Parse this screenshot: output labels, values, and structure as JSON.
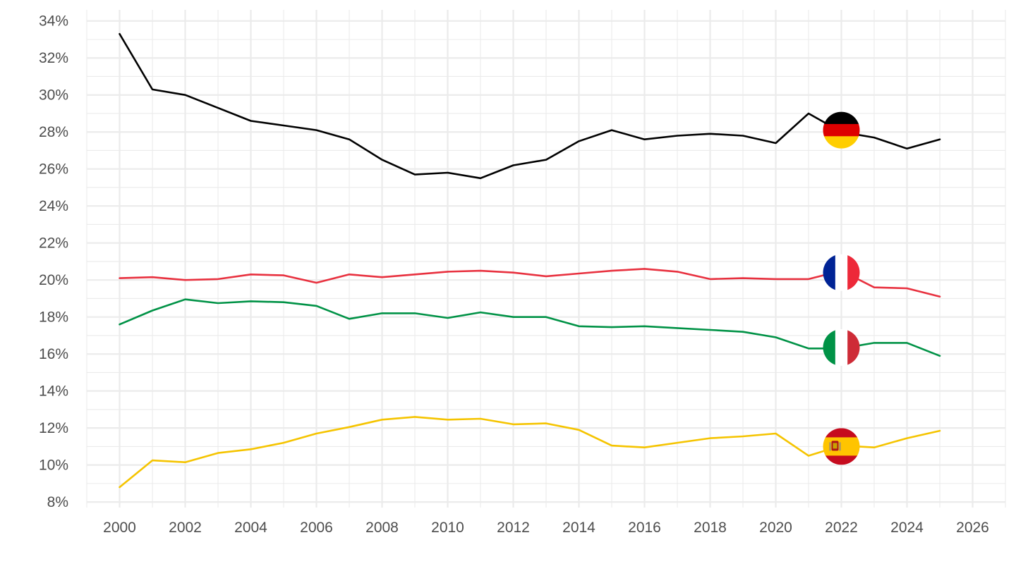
{
  "chart_data": {
    "type": "line",
    "title": "",
    "xlabel": "",
    "ylabel": "",
    "xlim": [
      1999,
      2027
    ],
    "ylim": [
      7.7,
      34.6
    ],
    "x_ticks": [
      2000,
      2002,
      2004,
      2006,
      2008,
      2010,
      2012,
      2014,
      2016,
      2018,
      2020,
      2022,
      2024,
      2026
    ],
    "y_ticks": [
      8,
      10,
      12,
      14,
      16,
      18,
      20,
      22,
      24,
      26,
      28,
      30,
      32,
      34
    ],
    "x_tick_labels": [
      "2000",
      "2002",
      "2004",
      "2006",
      "2008",
      "2010",
      "2012",
      "2014",
      "2016",
      "2018",
      "2020",
      "2022",
      "2024",
      "2026"
    ],
    "y_tick_labels": [
      "8%",
      "10%",
      "12%",
      "14%",
      "16%",
      "18%",
      "20%",
      "22%",
      "24%",
      "26%",
      "28%",
      "30%",
      "32%",
      "34%"
    ],
    "grid": true,
    "legend": "none",
    "x": [
      2000,
      2001,
      2002,
      2003,
      2004,
      2005,
      2006,
      2007,
      2008,
      2009,
      2010,
      2011,
      2012,
      2013,
      2014,
      2015,
      2016,
      2017,
      2018,
      2019,
      2020,
      2021,
      2022,
      2023,
      2024,
      2025
    ],
    "series": [
      {
        "flag": "germany-flag",
        "color": "#000000",
        "values": [
          33.3,
          30.3,
          30.0,
          29.3,
          28.6,
          28.35,
          28.1,
          27.6,
          26.5,
          25.7,
          25.8,
          25.5,
          26.2,
          26.5,
          27.5,
          28.1,
          27.6,
          27.8,
          27.9,
          27.8,
          27.4,
          29.0,
          28.0,
          27.7,
          27.1,
          27.6
        ],
        "flag_x": 2022,
        "flag_y": 28.1
      },
      {
        "flag": "france-flag",
        "color": "#e8313f",
        "values": [
          20.1,
          20.15,
          20.0,
          20.05,
          20.3,
          20.25,
          19.85,
          20.3,
          20.15,
          20.3,
          20.45,
          20.5,
          20.4,
          20.2,
          20.35,
          20.5,
          20.6,
          20.45,
          20.05,
          20.1,
          20.05,
          20.05,
          20.5,
          19.6,
          19.55,
          19.1
        ],
        "flag_x": 2022,
        "flag_y": 20.4
      },
      {
        "flag": "italy-flag",
        "color": "#009246",
        "values": [
          17.6,
          18.35,
          18.95,
          18.75,
          18.85,
          18.8,
          18.6,
          17.9,
          18.2,
          18.2,
          17.95,
          18.25,
          18.0,
          18.0,
          17.5,
          17.45,
          17.5,
          17.4,
          17.3,
          17.2,
          16.9,
          16.3,
          16.3,
          16.6,
          16.6,
          15.9
        ],
        "flag_x": 2022,
        "flag_y": 16.35
      },
      {
        "flag": "spain-flag",
        "color": "#f5c400",
        "values": [
          8.8,
          10.25,
          10.15,
          10.65,
          10.85,
          11.2,
          11.7,
          12.05,
          12.45,
          12.6,
          12.45,
          12.5,
          12.2,
          12.25,
          11.9,
          11.05,
          10.95,
          11.2,
          11.45,
          11.55,
          11.7,
          10.5,
          11.05,
          10.95,
          11.45,
          11.85
        ],
        "flag_x": 2022,
        "flag_y": 11.0
      }
    ]
  }
}
